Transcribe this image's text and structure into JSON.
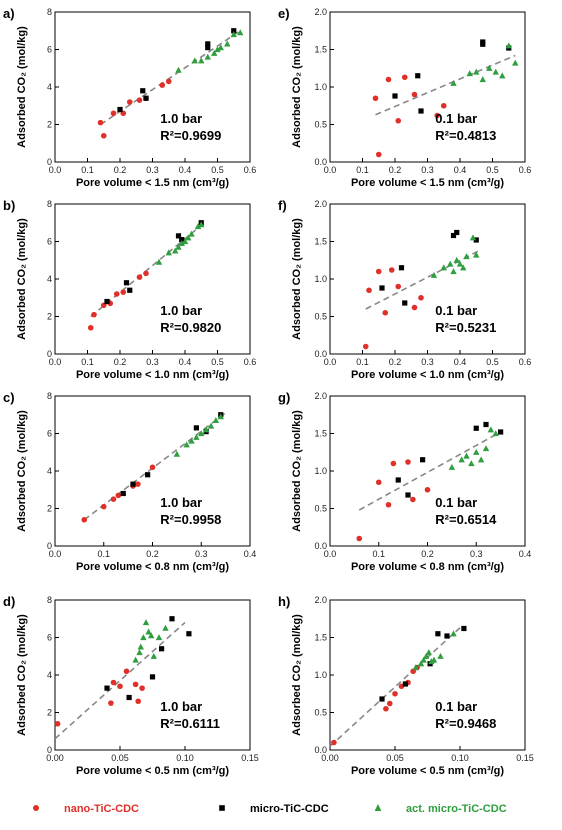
{
  "legend": {
    "nano": {
      "label": "nano-TiC-CDC",
      "color": "#e0302a"
    },
    "micro": {
      "label": "micro-TiC-CDC",
      "color": "#000000"
    },
    "act": {
      "label": "act. micro-TiC-CDC",
      "color": "#2e9e3e"
    }
  },
  "chart_data": [
    {
      "type": "scatter",
      "panel": "a)",
      "xlabel": "Pore volume < 1.5 nm (cm³/g)",
      "ylabel": "Adsorbed CO₂ (mol/kg)",
      "xlim": [
        0,
        0.6
      ],
      "ylim": [
        0,
        8
      ],
      "xticks": [
        "0.0",
        "0.1",
        "0.2",
        "0.3",
        "0.4",
        "0.5",
        "0.6"
      ],
      "yticks": [
        "0",
        "2",
        "4",
        "6",
        "8"
      ],
      "annotation_pressure": "1.0 bar",
      "annotation_r2": "R²=0.9699",
      "fit": [
        [
          0.14,
          2.0
        ],
        [
          0.57,
          7.0
        ]
      ],
      "series": [
        {
          "key": "nano",
          "x": [
            0.14,
            0.15,
            0.18,
            0.21,
            0.23,
            0.26,
            0.33,
            0.35,
            0.28
          ],
          "y": [
            2.1,
            1.4,
            2.6,
            2.6,
            3.2,
            3.3,
            4.1,
            4.3,
            3.4
          ]
        },
        {
          "key": "micro",
          "x": [
            0.2,
            0.27,
            0.28,
            0.47,
            0.47,
            0.55
          ],
          "y": [
            2.8,
            3.8,
            3.4,
            6.3,
            6.1,
            7.0
          ]
        },
        {
          "key": "act",
          "x": [
            0.38,
            0.43,
            0.45,
            0.47,
            0.49,
            0.5,
            0.51,
            0.53,
            0.55,
            0.57
          ],
          "y": [
            4.9,
            5.4,
            5.4,
            5.6,
            5.8,
            6.0,
            6.1,
            6.3,
            6.8,
            6.9
          ]
        }
      ]
    },
    {
      "type": "scatter",
      "panel": "b)",
      "xlabel": "Pore volume < 1.0 nm (cm³/g)",
      "ylabel": "Adsorbed CO₂ (mol/kg)",
      "xlim": [
        0,
        0.6
      ],
      "ylim": [
        0,
        8
      ],
      "xticks": [
        "0.0",
        "0.1",
        "0.2",
        "0.3",
        "0.4",
        "0.5",
        "0.6"
      ],
      "yticks": [
        "0",
        "2",
        "4",
        "6",
        "8"
      ],
      "annotation_pressure": "1.0 bar",
      "annotation_r2": "R²=0.9820",
      "fit": [
        [
          0.11,
          2.0
        ],
        [
          0.46,
          7.0
        ]
      ],
      "series": [
        {
          "key": "nano",
          "x": [
            0.11,
            0.12,
            0.15,
            0.17,
            0.19,
            0.21,
            0.26,
            0.28
          ],
          "y": [
            1.4,
            2.1,
            2.6,
            2.7,
            3.2,
            3.3,
            4.1,
            4.3
          ]
        },
        {
          "key": "micro",
          "x": [
            0.16,
            0.22,
            0.23,
            0.38,
            0.39,
            0.45
          ],
          "y": [
            2.8,
            3.8,
            3.4,
            6.3,
            6.1,
            7.0
          ]
        },
        {
          "key": "act",
          "x": [
            0.32,
            0.35,
            0.37,
            0.38,
            0.39,
            0.4,
            0.41,
            0.42,
            0.44,
            0.45
          ],
          "y": [
            4.9,
            5.4,
            5.5,
            5.7,
            5.9,
            6.0,
            6.2,
            6.4,
            6.8,
            6.9
          ]
        }
      ]
    },
    {
      "type": "scatter",
      "panel": "c)",
      "xlabel": "Pore volume < 0.8 nm (cm³/g)",
      "ylabel": "Adsorbed CO₂ (mol/kg)",
      "xlim": [
        0,
        0.4
      ],
      "ylim": [
        0,
        8
      ],
      "xticks": [
        "0.0",
        "0.1",
        "0.2",
        "0.3",
        "0.4"
      ],
      "yticks": [
        "0",
        "2",
        "4",
        "6",
        "8"
      ],
      "annotation_pressure": "1.0 bar",
      "annotation_r2": "R²=0.9958",
      "fit": [
        [
          0.06,
          1.4
        ],
        [
          0.35,
          7.1
        ]
      ],
      "series": [
        {
          "key": "nano",
          "x": [
            0.06,
            0.1,
            0.12,
            0.13,
            0.16,
            0.17,
            0.2
          ],
          "y": [
            1.4,
            2.1,
            2.5,
            2.7,
            3.2,
            3.3,
            4.2
          ]
        },
        {
          "key": "micro",
          "x": [
            0.14,
            0.16,
            0.19,
            0.29,
            0.31,
            0.34
          ],
          "y": [
            2.8,
            3.3,
            3.8,
            6.3,
            6.1,
            7.0
          ]
        },
        {
          "key": "act",
          "x": [
            0.25,
            0.27,
            0.28,
            0.29,
            0.3,
            0.31,
            0.32,
            0.33,
            0.34
          ],
          "y": [
            4.9,
            5.4,
            5.6,
            5.8,
            6.0,
            6.2,
            6.4,
            6.7,
            6.9
          ]
        }
      ]
    },
    {
      "type": "scatter",
      "panel": "d)",
      "xlabel": "Pore volume < 0.5 nm (cm³/g)",
      "ylabel": "Adsorbed CO₂ (mol/kg)",
      "xlim": [
        0,
        0.15
      ],
      "ylim": [
        0,
        8
      ],
      "xticks": [
        "0.00",
        "0.05",
        "0.10",
        "0.15"
      ],
      "yticks": [
        "0",
        "2",
        "4",
        "6",
        "8"
      ],
      "annotation_pressure": "1.0 bar",
      "annotation_r2": "R²=0.6111",
      "fit": [
        [
          0.0,
          0.6
        ],
        [
          0.1,
          6.8
        ]
      ],
      "series": [
        {
          "key": "nano",
          "x": [
            0.002,
            0.043,
            0.045,
            0.05,
            0.055,
            0.062,
            0.064,
            0.067
          ],
          "y": [
            1.4,
            2.5,
            3.6,
            3.4,
            4.2,
            3.5,
            2.6,
            3.3
          ]
        },
        {
          "key": "micro",
          "x": [
            0.04,
            0.057,
            0.075,
            0.082,
            0.09,
            0.103
          ],
          "y": [
            3.3,
            2.8,
            3.9,
            5.4,
            7.0,
            6.2
          ]
        },
        {
          "key": "act",
          "x": [
            0.062,
            0.065,
            0.066,
            0.068,
            0.07,
            0.072,
            0.074,
            0.076,
            0.08,
            0.085
          ],
          "y": [
            4.8,
            5.2,
            5.5,
            6.0,
            6.8,
            6.3,
            6.1,
            5.0,
            6.0,
            6.5
          ]
        }
      ]
    },
    {
      "type": "scatter",
      "panel": "e)",
      "xlabel": "Pore volume < 1.5 nm (cm³/g)",
      "ylabel": "Adsorbed CO₂ (mol/kg)",
      "xlim": [
        0,
        0.6
      ],
      "ylim": [
        0,
        2.0
      ],
      "xticks": [
        "0.0",
        "0.1",
        "0.2",
        "0.3",
        "0.4",
        "0.5",
        "0.6"
      ],
      "yticks": [
        "0.0",
        "0.5",
        "1.0",
        "1.5",
        "2.0"
      ],
      "annotation_pressure": "0.1 bar",
      "annotation_r2": "R²=0.4813",
      "fit": [
        [
          0.14,
          0.63
        ],
        [
          0.57,
          1.42
        ]
      ],
      "series": [
        {
          "key": "nano",
          "x": [
            0.14,
            0.15,
            0.18,
            0.21,
            0.23,
            0.26,
            0.33,
            0.35
          ],
          "y": [
            0.85,
            0.1,
            1.1,
            0.55,
            1.13,
            0.9,
            0.62,
            0.75
          ]
        },
        {
          "key": "micro",
          "x": [
            0.2,
            0.27,
            0.28,
            0.47,
            0.47,
            0.55
          ],
          "y": [
            0.88,
            1.15,
            0.68,
            1.6,
            1.57,
            1.52
          ]
        },
        {
          "key": "act",
          "x": [
            0.38,
            0.43,
            0.45,
            0.47,
            0.49,
            0.51,
            0.53,
            0.55,
            0.57
          ],
          "y": [
            1.05,
            1.18,
            1.2,
            1.1,
            1.25,
            1.2,
            1.15,
            1.55,
            1.32
          ]
        }
      ]
    },
    {
      "type": "scatter",
      "panel": "f)",
      "xlabel": "Pore volume < 1.0 nm (cm³/g)",
      "ylabel": "Adsorbed CO₂ (mol/kg)",
      "xlim": [
        0,
        0.6
      ],
      "ylim": [
        0,
        2.0
      ],
      "xticks": [
        "0.0",
        "0.1",
        "0.2",
        "0.3",
        "0.4",
        "0.5",
        "0.6"
      ],
      "yticks": [
        "0.0",
        "0.5",
        "1.0",
        "1.5",
        "2.0"
      ],
      "annotation_pressure": "0.1 bar",
      "annotation_r2": "R²=0.5231",
      "fit": [
        [
          0.11,
          0.6
        ],
        [
          0.46,
          1.38
        ]
      ],
      "series": [
        {
          "key": "nano",
          "x": [
            0.11,
            0.12,
            0.15,
            0.17,
            0.19,
            0.21,
            0.26,
            0.28
          ],
          "y": [
            0.1,
            0.85,
            1.1,
            0.55,
            1.12,
            0.9,
            0.62,
            0.75
          ]
        },
        {
          "key": "micro",
          "x": [
            0.16,
            0.22,
            0.23,
            0.38,
            0.39,
            0.45
          ],
          "y": [
            0.88,
            1.15,
            0.68,
            1.58,
            1.62,
            1.52
          ]
        },
        {
          "key": "act",
          "x": [
            0.32,
            0.35,
            0.37,
            0.38,
            0.39,
            0.4,
            0.41,
            0.42,
            0.44,
            0.45
          ],
          "y": [
            1.05,
            1.15,
            1.2,
            1.1,
            1.25,
            1.2,
            1.15,
            1.3,
            1.55,
            1.32
          ]
        }
      ]
    },
    {
      "type": "scatter",
      "panel": "g)",
      "xlabel": "Pore volume < 0.8 nm (cm³/g)",
      "ylabel": "Adsorbed CO₂ (mol/kg)",
      "xlim": [
        0,
        0.4
      ],
      "ylim": [
        0,
        2.0
      ],
      "xticks": [
        "0.0",
        "0.1",
        "0.2",
        "0.3",
        "0.4"
      ],
      "yticks": [
        "0.0",
        "0.5",
        "1.0",
        "1.5",
        "2.0"
      ],
      "annotation_pressure": "0.1 bar",
      "annotation_r2": "R²=0.6514",
      "fit": [
        [
          0.06,
          0.48
        ],
        [
          0.35,
          1.52
        ]
      ],
      "series": [
        {
          "key": "nano",
          "x": [
            0.06,
            0.1,
            0.12,
            0.13,
            0.16,
            0.17,
            0.2
          ],
          "y": [
            0.1,
            0.85,
            0.55,
            1.1,
            1.12,
            0.62,
            0.75
          ]
        },
        {
          "key": "micro",
          "x": [
            0.14,
            0.16,
            0.19,
            0.3,
            0.32,
            0.35
          ],
          "y": [
            0.88,
            0.68,
            1.15,
            1.57,
            1.62,
            1.52
          ]
        },
        {
          "key": "act",
          "x": [
            0.25,
            0.27,
            0.28,
            0.29,
            0.3,
            0.31,
            0.32,
            0.33,
            0.34
          ],
          "y": [
            1.05,
            1.15,
            1.2,
            1.1,
            1.25,
            1.15,
            1.3,
            1.55,
            1.5
          ]
        }
      ]
    },
    {
      "type": "scatter",
      "panel": "h)",
      "xlabel": "Pore volume < 0.5 nm (cm³/g)",
      "ylabel": "Adsorbed CO₂ (mol/kg)",
      "xlim": [
        0,
        0.15
      ],
      "ylim": [
        0,
        2.0
      ],
      "xticks": [
        "0.00",
        "0.05",
        "0.10",
        "0.15"
      ],
      "yticks": [
        "0.0",
        "0.5",
        "1.0",
        "1.5",
        "2.0"
      ],
      "annotation_pressure": "0.1 bar",
      "annotation_r2": "R²=0.9468",
      "fit": [
        [
          0.0,
          0.05
        ],
        [
          0.1,
          1.63
        ]
      ],
      "series": [
        {
          "key": "nano",
          "x": [
            0.003,
            0.043,
            0.046,
            0.05,
            0.055,
            0.06,
            0.064,
            0.067
          ],
          "y": [
            0.1,
            0.55,
            0.62,
            0.75,
            0.85,
            0.9,
            1.05,
            1.1
          ]
        },
        {
          "key": "micro",
          "x": [
            0.04,
            0.058,
            0.077,
            0.083,
            0.09,
            0.103
          ],
          "y": [
            0.68,
            0.88,
            1.15,
            1.55,
            1.52,
            1.62
          ]
        },
        {
          "key": "act",
          "x": [
            0.066,
            0.07,
            0.072,
            0.074,
            0.076,
            0.078,
            0.08,
            0.085,
            0.095
          ],
          "y": [
            1.1,
            1.15,
            1.2,
            1.25,
            1.3,
            1.18,
            1.2,
            1.25,
            1.55
          ]
        }
      ]
    }
  ]
}
